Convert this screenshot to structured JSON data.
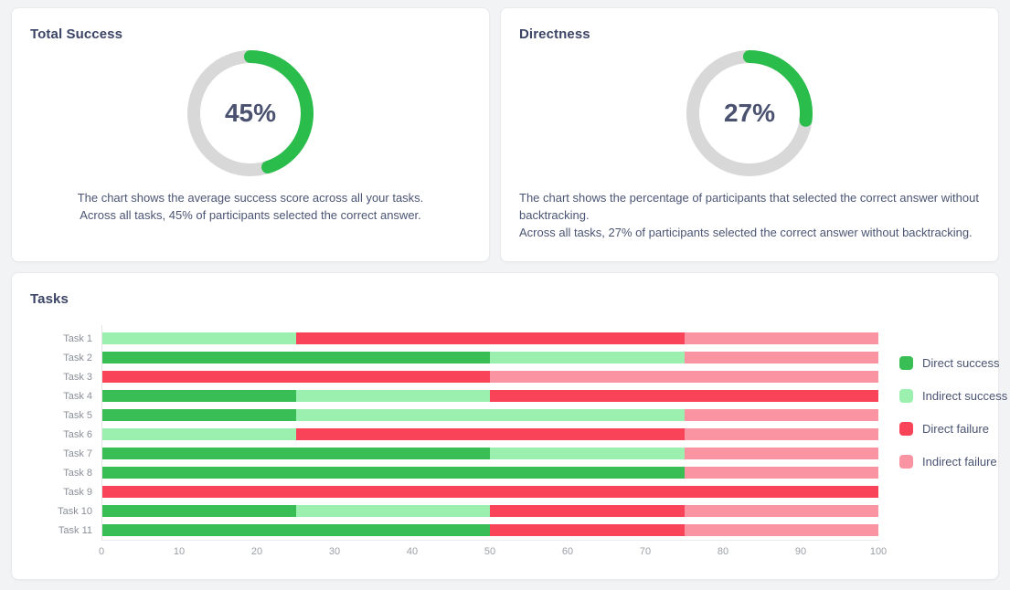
{
  "cards": {
    "total_success": {
      "title": "Total Success",
      "percent": 45,
      "percent_label": "45%",
      "description_lines": [
        "The chart shows the average success score across all your tasks.",
        "Across all tasks, 45% of participants selected the correct answer."
      ]
    },
    "directness": {
      "title": "Directness",
      "percent": 27,
      "percent_label": "27%",
      "description_lines": [
        "The chart shows the percentage of participants that selected the correct answer without backtracking.",
        "Across all tasks, 27% of participants selected the correct answer without backtracking."
      ]
    },
    "tasks": {
      "title": "Tasks"
    }
  },
  "colors": {
    "donut_track": "#d8d8d8",
    "donut_progress": "#2bbd4c",
    "direct_success": "#39bd55",
    "indirect_success": "#9bf0af",
    "direct_failure": "#f94358",
    "indirect_failure": "#fa93a2",
    "title_text": "#3c4565",
    "body_text": "#4b5574"
  },
  "chart_data": [
    {
      "type": "donut",
      "title": "Total Success",
      "value": 45,
      "max": 100,
      "center_label": "45%",
      "progress_color": "#2bbd4c",
      "track_color": "#d8d8d8"
    },
    {
      "type": "donut",
      "title": "Directness",
      "value": 27,
      "max": 100,
      "center_label": "27%",
      "progress_color": "#2bbd4c",
      "track_color": "#d8d8d8"
    },
    {
      "type": "bar",
      "orientation": "horizontal",
      "stacked": true,
      "title": "Tasks",
      "categories": [
        "Task 1",
        "Task 2",
        "Task 3",
        "Task 4",
        "Task 5",
        "Task 6",
        "Task 7",
        "Task 8",
        "Task 9",
        "Task 10",
        "Task 11"
      ],
      "series": [
        {
          "name": "Direct success",
          "color": "#39bd55",
          "values": [
            0,
            50,
            0,
            25,
            25,
            0,
            50,
            75,
            0,
            25,
            50
          ]
        },
        {
          "name": "Indirect success",
          "color": "#9bf0af",
          "values": [
            25,
            25,
            0,
            25,
            50,
            25,
            25,
            0,
            0,
            25,
            0
          ]
        },
        {
          "name": "Direct failure",
          "color": "#f94358",
          "values": [
            50,
            0,
            50,
            50,
            0,
            50,
            0,
            0,
            100,
            25,
            25
          ]
        },
        {
          "name": "Indirect failure",
          "color": "#fa93a2",
          "values": [
            25,
            25,
            50,
            0,
            25,
            25,
            25,
            25,
            0,
            25,
            25
          ]
        }
      ],
      "xlim": [
        0,
        100
      ],
      "x_ticks": [
        0,
        10,
        20,
        30,
        40,
        50,
        60,
        70,
        80,
        90,
        100
      ],
      "grid": false,
      "legend_position": "right"
    }
  ]
}
